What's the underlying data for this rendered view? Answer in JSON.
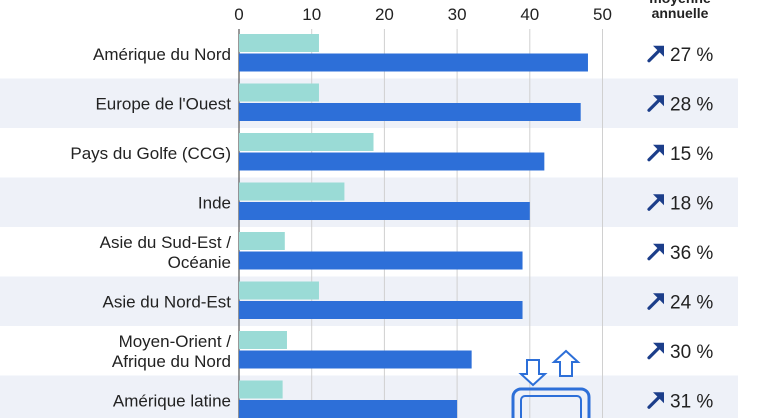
{
  "chart_data": {
    "type": "bar",
    "orientation": "horizontal",
    "categories": [
      [
        "Amérique du Nord"
      ],
      [
        "Europe de l'Ouest"
      ],
      [
        "Pays du Golfe (CCG)"
      ],
      [
        "Inde"
      ],
      [
        "Asie du Sud-Est /",
        "Océanie"
      ],
      [
        "Asie du Nord-Est"
      ],
      [
        "Moyen-Orient /",
        "Afrique du Nord"
      ],
      [
        "Amérique latine"
      ]
    ],
    "series": [
      {
        "color": "#9adbd6",
        "values": [
          11,
          11,
          18.5,
          14.5,
          6.3,
          11,
          6.6,
          6
        ]
      },
      {
        "color": "#2d6fd8",
        "values": [
          48,
          47,
          42,
          40,
          39,
          39,
          32,
          30
        ]
      }
    ],
    "xticks": [
      0,
      10,
      20,
      30,
      40,
      50
    ],
    "xlim": [
      0,
      50
    ],
    "grid": true,
    "growth_header": [
      "moyenne",
      "annuelle"
    ],
    "growth_values": [
      "27 %",
      "28 %",
      "15 %",
      "18 %",
      "36 %",
      "24 %",
      "30 %",
      "31 %"
    ],
    "growth_icon": "arrow-up-right-icon",
    "colors": {
      "arrow": "#1c3e8a",
      "row_band": "#eef1f8",
      "grid": "#d0d0d0"
    }
  }
}
